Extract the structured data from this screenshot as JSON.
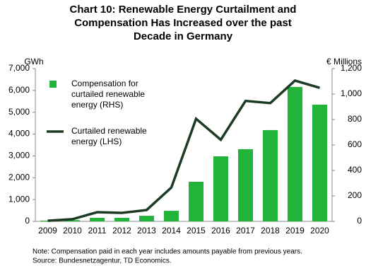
{
  "chart_data": {
    "type": "bar-line",
    "title": [
      "Chart 10: Renewable Energy Curtailment and",
      "Compensation Has Increased over the past",
      "Decade in Germany"
    ],
    "y_label": "GWh",
    "y2_label": "€ Millions",
    "categories": [
      "2009",
      "2010",
      "2011",
      "2012",
      "2013",
      "2014",
      "2015",
      "2016",
      "2017",
      "2018",
      "2019",
      "2020"
    ],
    "series": [
      {
        "name": "Compensation for\ncurtailed renewable\nenergy (RHS)",
        "type": "bar",
        "axis": "y2",
        "color": "#22b33a",
        "values": [
          6,
          10,
          28,
          28,
          44,
          83,
          311,
          511,
          567,
          717,
          1056,
          917
        ]
      },
      {
        "name": "Curtailed renewable\nenergy (LHS)",
        "type": "line",
        "axis": "y",
        "color": "#1c3b24",
        "values": [
          30,
          100,
          420,
          390,
          520,
          1550,
          4700,
          3740,
          5520,
          5420,
          6450,
          6120
        ]
      }
    ],
    "ylim": [
      0,
      7000
    ],
    "yticks": [
      0,
      {
        "value": 1000,
        "label": "1,000"
      },
      {
        "value": 2000,
        "label": "2,000"
      },
      {
        "value": 3000,
        "label": "3,000"
      },
      {
        "value": 4000,
        "label": "4,000"
      },
      {
        "value": 5000,
        "label": "5,000"
      },
      {
        "value": 6000,
        "label": "6,000"
      },
      {
        "value": 7000,
        "label": "7,000"
      }
    ],
    "y2lim": [
      0,
      1200
    ],
    "y2ticks": [
      0,
      200,
      400,
      600,
      800,
      {
        "value": 1000,
        "label": "1,000"
      },
      {
        "value": 1200,
        "label": "1,200"
      }
    ],
    "notes": [
      "Note:  Compensation   paid in each year includes amounts  payable from previous years.",
      "Source:  Bundesnetzagentur,  TD Economics."
    ]
  }
}
